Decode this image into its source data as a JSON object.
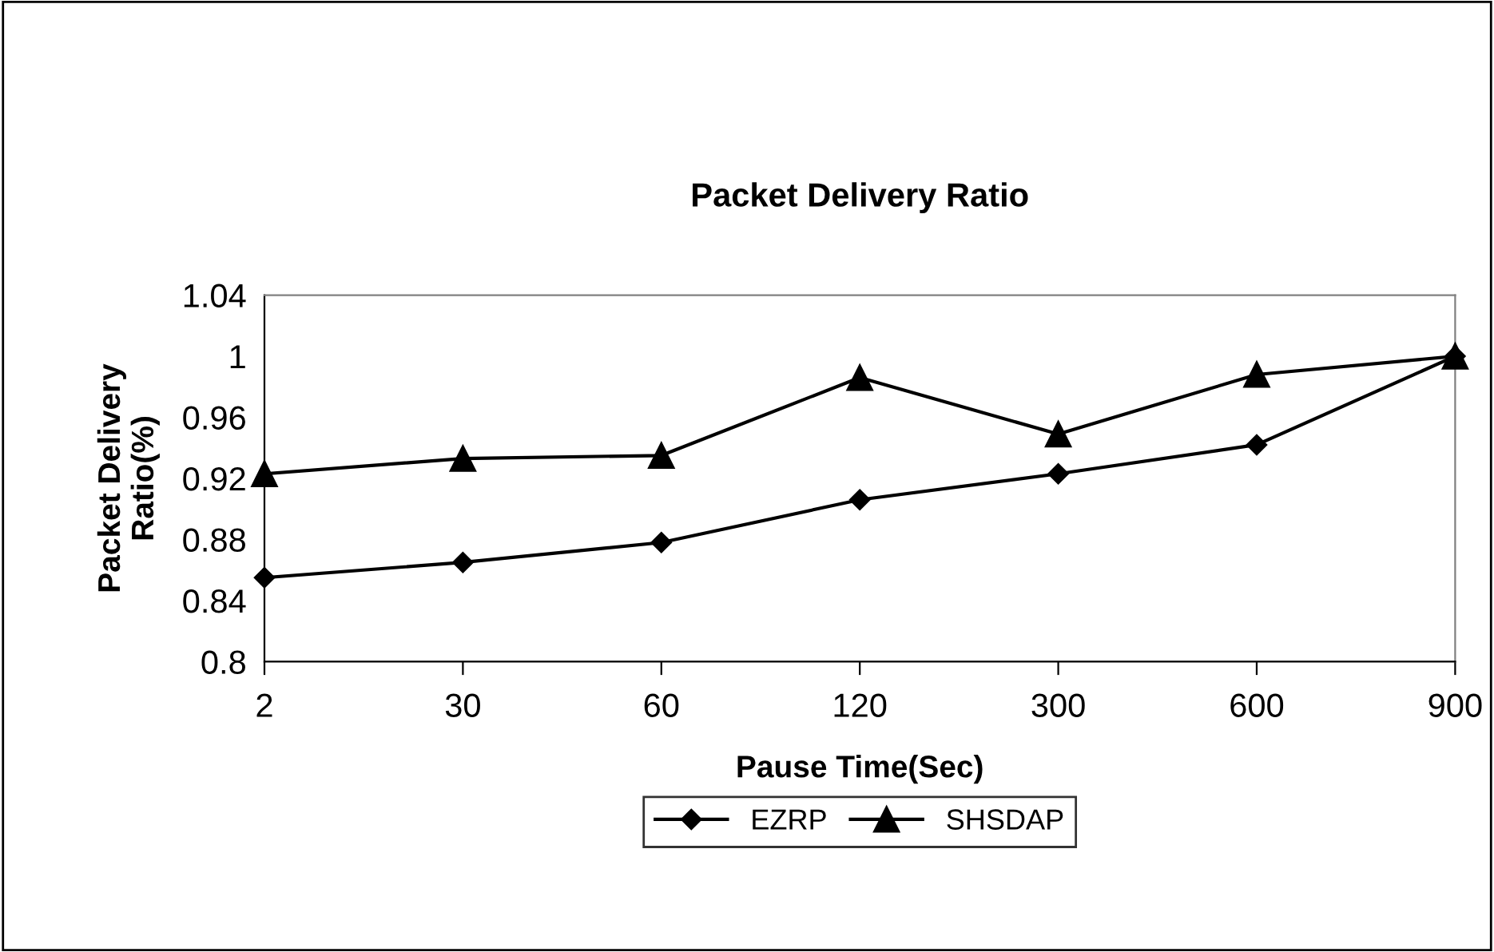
{
  "chart_data": {
    "type": "line",
    "title": "Packet Delivery Ratio",
    "xlabel": "Pause Time(Sec)",
    "ylabel": "Packet Delivery\nRatio(%)",
    "categories": [
      "2",
      "30",
      "60",
      "120",
      "300",
      "600",
      "900"
    ],
    "series": [
      {
        "name": "EZRP",
        "color": "#000000",
        "marker": "diamond",
        "values": [
          0.855,
          0.865,
          0.878,
          0.906,
          0.923,
          0.942,
          1.0
        ]
      },
      {
        "name": "SHSDAP",
        "color": "#000000",
        "marker": "triangle",
        "values": [
          0.923,
          0.933,
          0.935,
          0.986,
          0.949,
          0.988,
          1.0
        ]
      }
    ],
    "ylim": [
      0.8,
      1.04
    ],
    "yticks": [
      0.8,
      0.84,
      0.88,
      0.92,
      0.96,
      1,
      1.04
    ],
    "grid": false,
    "legend": "bottom",
    "line_style": "solid"
  }
}
